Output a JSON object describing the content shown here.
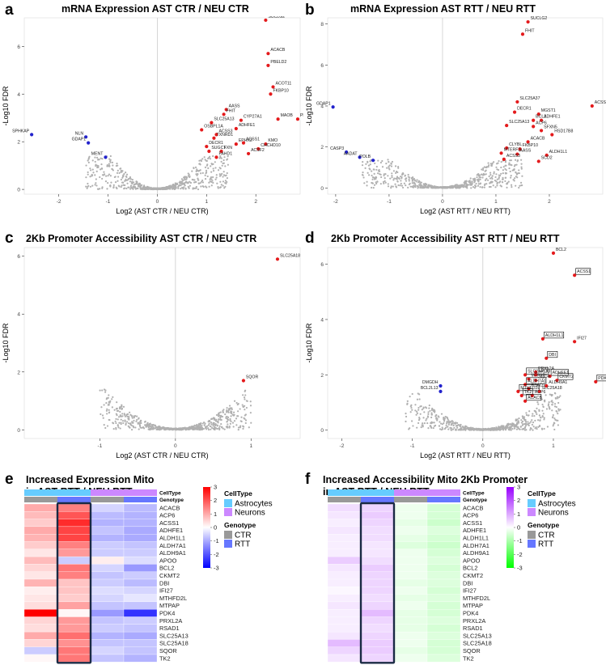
{
  "chart_data": [
    {
      "id": "a",
      "type": "scatter",
      "letter": "a",
      "title": "mRNA Expression AST CTR / NEU CTR",
      "xlabel": "Log2 (AST CTR / NEU CTR)",
      "ylabel": "-Log10 FDR",
      "xlim": [
        -2.7,
        2.9
      ],
      "ylim": [
        -0.2,
        7.2
      ],
      "xticks": [
        -2,
        -1,
        0,
        1,
        2
      ],
      "yticks": [
        0,
        2,
        4,
        6
      ],
      "points": [
        {
          "label": "SUCLG2",
          "x": 2.2,
          "y": 7.1,
          "color": "red"
        },
        {
          "label": "ACACB",
          "x": 2.25,
          "y": 5.7,
          "color": "red"
        },
        {
          "label": "PBELD2",
          "x": 2.25,
          "y": 5.2,
          "color": "red"
        },
        {
          "label": "ACOT11",
          "x": 2.35,
          "y": 4.3,
          "color": "red"
        },
        {
          "label": "FKBP10",
          "x": 2.3,
          "y": 4.0,
          "color": "red"
        },
        {
          "label": "AASS",
          "x": 1.4,
          "y": 3.35,
          "color": "red"
        },
        {
          "label": "FHIT",
          "x": 1.35,
          "y": 3.15,
          "color": "red"
        },
        {
          "label": "MAOB",
          "x": 2.45,
          "y": 2.95,
          "color": "red"
        },
        {
          "label": "PDK4",
          "x": 2.85,
          "y": 2.95,
          "color": "red"
        },
        {
          "label": "CYP27A1",
          "x": 1.7,
          "y": 2.9,
          "color": "red"
        },
        {
          "label": "SLC25A13",
          "x": 1.1,
          "y": 2.8,
          "color": "red"
        },
        {
          "label": "ADHFE1",
          "x": 1.6,
          "y": 2.55,
          "color": "red"
        },
        {
          "label": "OSBPL1A",
          "x": 0.9,
          "y": 2.5,
          "color": "red"
        },
        {
          "label": "ACSS3",
          "x": 1.2,
          "y": 2.3,
          "color": "red"
        },
        {
          "label": "TXNRD1",
          "x": 1.15,
          "y": 2.15,
          "color": "red"
        },
        {
          "label": "EPHX2",
          "x": 1.6,
          "y": 1.9,
          "color": "red"
        },
        {
          "label": "ACSS1",
          "x": 1.75,
          "y": 1.95,
          "color": "red"
        },
        {
          "label": "KMO",
          "x": 2.2,
          "y": 1.9,
          "color": "red"
        },
        {
          "label": "DECR1",
          "x": 1.0,
          "y": 1.8,
          "color": "red"
        },
        {
          "label": "CHCHD10",
          "x": 2.05,
          "y": 1.7,
          "color": "red"
        },
        {
          "label": "SUGCT",
          "x": 1.05,
          "y": 1.6,
          "color": "red"
        },
        {
          "label": "FXN",
          "x": 1.3,
          "y": 1.6,
          "color": "red"
        },
        {
          "label": "ACSF2",
          "x": 1.85,
          "y": 1.5,
          "color": "red"
        },
        {
          "label": "FAHD1",
          "x": 1.2,
          "y": 1.35,
          "color": "red"
        },
        {
          "label": "SPHKAP",
          "x": -2.55,
          "y": 2.3,
          "color": "blue"
        },
        {
          "label": "NLN",
          "x": -1.45,
          "y": 2.2,
          "color": "blue"
        },
        {
          "label": "GDAP1",
          "x": -1.4,
          "y": 1.95,
          "color": "blue"
        },
        {
          "label": "MENT",
          "x": -1.05,
          "y": 1.35,
          "color": "blue"
        }
      ]
    },
    {
      "id": "b",
      "type": "scatter",
      "letter": "b",
      "title": "mRNA Expression AST RTT / NEU RTT",
      "xlabel": "Log2 (AST RTT / NEU RTT)",
      "ylabel": "-Log10 FDR",
      "xlim": [
        -2.15,
        3.0
      ],
      "ylim": [
        -0.3,
        8.3
      ],
      "xticks": [
        -2,
        -1,
        0,
        1,
        2
      ],
      "yticks": [
        0,
        2,
        4,
        6,
        8
      ],
      "points": [
        {
          "label": "SUCLG2",
          "x": 1.6,
          "y": 8.1,
          "color": "red"
        },
        {
          "label": "FHIT",
          "x": 1.5,
          "y": 7.5,
          "color": "red"
        },
        {
          "label": "SLC25A37",
          "x": 1.4,
          "y": 4.2,
          "color": "red"
        },
        {
          "label": "ACSS1",
          "x": 2.8,
          "y": 4.0,
          "color": "red"
        },
        {
          "label": "DECR1",
          "x": 1.35,
          "y": 3.7,
          "color": "red"
        },
        {
          "label": "MGST1",
          "x": 1.8,
          "y": 3.6,
          "color": "red"
        },
        {
          "label": "BCL2",
          "x": 1.7,
          "y": 3.3,
          "color": "red"
        },
        {
          "label": "ADHFE1",
          "x": 1.85,
          "y": 3.3,
          "color": "red"
        },
        {
          "label": "ACP6",
          "x": 1.7,
          "y": 3.0,
          "color": "red"
        },
        {
          "label": "SLC25A13",
          "x": 1.2,
          "y": 3.05,
          "color": "red"
        },
        {
          "label": "SFXN5",
          "x": 1.85,
          "y": 2.8,
          "color": "red"
        },
        {
          "label": "HSD17B8",
          "x": 2.05,
          "y": 2.6,
          "color": "red"
        },
        {
          "label": "ACACB",
          "x": 1.6,
          "y": 2.25,
          "color": "red"
        },
        {
          "label": "CLYBL",
          "x": 1.2,
          "y": 1.95,
          "color": "red"
        },
        {
          "label": "FKBP10",
          "x": 1.45,
          "y": 1.9,
          "color": "red"
        },
        {
          "label": "MTERF2",
          "x": 1.1,
          "y": 1.7,
          "color": "red"
        },
        {
          "label": "AASS",
          "x": 1.4,
          "y": 1.65,
          "color": "red"
        },
        {
          "label": "ALDH1L1",
          "x": 1.95,
          "y": 1.6,
          "color": "red"
        },
        {
          "label": "ACSS3",
          "x": 1.15,
          "y": 1.4,
          "color": "red"
        },
        {
          "label": "SCD2",
          "x": 1.8,
          "y": 1.3,
          "color": "red"
        },
        {
          "label": "GDAP1",
          "x": -2.05,
          "y": 3.95,
          "color": "blue"
        },
        {
          "label": "CASP3",
          "x": -1.8,
          "y": 1.75,
          "color": "blue"
        },
        {
          "label": "AADAT",
          "x": -1.55,
          "y": 1.5,
          "color": "blue"
        },
        {
          "label": "POLB",
          "x": -1.3,
          "y": 1.35,
          "color": "blue"
        }
      ]
    },
    {
      "id": "c",
      "type": "scatter",
      "letter": "c",
      "title": "2Kb Promoter Accessibility AST CTR / NEU CTR",
      "xlabel": "Log2 (AST CTR / NEU CTR)",
      "ylabel": "-Log10 FDR",
      "xlim": [
        -2.0,
        1.65
      ],
      "ylim": [
        -0.3,
        6.3
      ],
      "xticks": [
        -1,
        0,
        1
      ],
      "yticks": [
        0,
        2,
        4,
        6
      ],
      "points": [
        {
          "label": "SLC25A18",
          "x": 1.35,
          "y": 5.9,
          "color": "red"
        },
        {
          "label": "SQOR",
          "x": 0.9,
          "y": 1.7,
          "color": "red"
        }
      ]
    },
    {
      "id": "d",
      "type": "scatter",
      "letter": "d",
      "title": "2Kb Promoter Accessibility AST RTT / NEU RTT",
      "xlabel": "Log2 (AST RTT / NEU RTT)",
      "ylabel": "-Log10 FDR",
      "xlim": [
        -2.2,
        1.7
      ],
      "ylim": [
        -0.3,
        6.6
      ],
      "xticks": [
        -2,
        -1,
        0,
        1
      ],
      "yticks": [
        0,
        2,
        4,
        6
      ],
      "points": [
        {
          "label": "BCL2",
          "x": 1.0,
          "y": 6.4,
          "color": "red"
        },
        {
          "label": "ACSS1",
          "x": 1.3,
          "y": 5.6,
          "color": "red",
          "boxed": true
        },
        {
          "label": "ALDH1L1",
          "x": 0.85,
          "y": 3.3,
          "color": "red",
          "boxed": true
        },
        {
          "label": "IFI27",
          "x": 1.3,
          "y": 3.2,
          "color": "red"
        },
        {
          "label": "DBI",
          "x": 0.9,
          "y": 2.6,
          "color": "red",
          "boxed": true
        },
        {
          "label": "PRXL2A",
          "x": 0.75,
          "y": 2.1,
          "color": "red"
        },
        {
          "label": "SLC25A13",
          "x": 0.6,
          "y": 2.0,
          "color": "red",
          "boxed": true
        },
        {
          "label": "APOO",
          "x": 0.75,
          "y": 2.0,
          "color": "red"
        },
        {
          "label": "ADHFE1",
          "x": 0.95,
          "y": 1.95,
          "color": "red",
          "boxed": true
        },
        {
          "label": "MTPAP",
          "x": 0.65,
          "y": 1.85,
          "color": "red"
        },
        {
          "label": "SQOR",
          "x": 0.75,
          "y": 1.8,
          "color": "red"
        },
        {
          "label": "CKMT2",
          "x": 1.05,
          "y": 1.8,
          "color": "red",
          "boxed": true
        },
        {
          "label": "PDK4",
          "x": 1.6,
          "y": 1.75,
          "color": "red",
          "boxed": true
        },
        {
          "label": "ALDH7A1",
          "x": 0.6,
          "y": 1.65,
          "color": "red",
          "boxed": true
        },
        {
          "label": "ALDH9A1",
          "x": 0.9,
          "y": 1.6,
          "color": "red"
        },
        {
          "label": "RSAD1",
          "x": 0.65,
          "y": 1.5,
          "color": "red"
        },
        {
          "label": "MTHFD2L",
          "x": 0.5,
          "y": 1.4,
          "color": "red",
          "boxed": true
        },
        {
          "label": "SLC25A18",
          "x": 0.8,
          "y": 1.4,
          "color": "red"
        },
        {
          "label": "TK2",
          "x": 0.55,
          "y": 1.25,
          "color": "red",
          "boxed": true
        },
        {
          "label": "ACP6",
          "x": 0.7,
          "y": 1.25,
          "color": "red"
        },
        {
          "label": "ACACB",
          "x": 0.6,
          "y": 1.05,
          "color": "red",
          "boxed": true
        },
        {
          "label": "DMGDH",
          "x": -0.6,
          "y": 1.6,
          "color": "blue"
        },
        {
          "label": "BCL2L13",
          "x": -0.6,
          "y": 1.4,
          "color": "blue"
        }
      ]
    },
    {
      "id": "e",
      "type": "heatmap",
      "letter": "e",
      "title_line1": "Increased Expression Mito",
      "title_line2": "in AST RTT / NEU RTT",
      "row_labels": [
        "ACACB",
        "ACP6",
        "ACSS1",
        "ADHFE1",
        "ALDH1L1",
        "ALDH7A1",
        "ALDH9A1",
        "APOO",
        "BCL2",
        "CKMT2",
        "DBI",
        "IFI27",
        "MTHFD2L",
        "MTPAP",
        "PDK4",
        "PRXL2A",
        "RSAD1",
        "SLC25A13",
        "SLC25A18",
        "SQOR",
        "TK2"
      ],
      "celltype": [
        "Astrocytes",
        "Astrocytes",
        "Neurons",
        "Neurons"
      ],
      "genotype": [
        "CTR",
        "RTT",
        "CTR",
        "RTT"
      ],
      "values": [
        [
          1.0,
          1.5,
          -0.5,
          -0.8
        ],
        [
          0.8,
          2.0,
          -0.8,
          -0.9
        ],
        [
          0.6,
          2.5,
          -0.9,
          -0.9
        ],
        [
          1.0,
          2.2,
          -0.7,
          -1.0
        ],
        [
          0.9,
          2.2,
          -0.9,
          -1.0
        ],
        [
          0.6,
          1.5,
          -0.6,
          -0.7
        ],
        [
          0.3,
          1.2,
          -0.6,
          -0.6
        ],
        [
          0.8,
          -0.6,
          0.2,
          -0.4
        ],
        [
          0.5,
          1.6,
          -0.5,
          -1.2
        ],
        [
          0.3,
          1.5,
          -0.7,
          -0.6
        ],
        [
          0.9,
          0.7,
          -0.6,
          -0.8
        ],
        [
          0.2,
          0.7,
          -0.4,
          -0.5
        ],
        [
          0.3,
          0.6,
          -0.5,
          -0.3
        ],
        [
          0.4,
          1.1,
          -0.7,
          -0.7
        ],
        [
          3.0,
          0.1,
          -1.2,
          -2.4
        ],
        [
          0.5,
          1.2,
          -0.7,
          -0.6
        ],
        [
          0.4,
          1.2,
          -0.6,
          -0.7
        ],
        [
          1.0,
          1.7,
          -0.9,
          -1.0
        ],
        [
          0.5,
          1.3,
          -0.7,
          -0.7
        ],
        [
          -0.6,
          1.6,
          -0.5,
          -0.7
        ],
        [
          0.1,
          1.6,
          -0.7,
          -0.9
        ]
      ],
      "colorbar": {
        "ticks": [
          3,
          2,
          1,
          0,
          -1,
          -2,
          -3
        ],
        "min": -3,
        "max": 3,
        "low": "#0000ff",
        "mid": "#ffffff",
        "high": "#ff0000"
      },
      "legend": {
        "celltype_title": "CellType",
        "celltype_items": [
          "Astrocytes",
          "Neurons"
        ],
        "genotype_title": "Genotype",
        "genotype_items": [
          "CTR",
          "RTT"
        ]
      }
    },
    {
      "id": "f",
      "type": "heatmap",
      "letter": "f",
      "title_line1": "Increased Accessibility Mito 2Kb Promoter",
      "title_line2": "in AST RTT / NEU RTT",
      "row_labels": [
        "ACACB",
        "ACP6",
        "ACSS1",
        "ADHFE1",
        "ALDH1L1",
        "ALDH7A1",
        "ALDH9A1",
        "APOO",
        "BCL2",
        "CKMT2",
        "DBI",
        "IFI27",
        "MTHFD2L",
        "MTPAP",
        "PDK4",
        "PRXL2A",
        "RSAD1",
        "SLC25A13",
        "SLC25A18",
        "SQOR",
        "TK2"
      ],
      "celltype": [
        "Astrocytes",
        "Astrocytes",
        "Neurons",
        "Neurons"
      ],
      "genotype": [
        "CTR",
        "RTT",
        "CTR",
        "RTT"
      ],
      "values": [
        [
          0.4,
          0.5,
          -0.2,
          -0.5
        ],
        [
          0.3,
          0.6,
          -0.2,
          -0.5
        ],
        [
          0.2,
          0.5,
          -0.3,
          -0.6
        ],
        [
          0.3,
          0.4,
          -0.2,
          -0.4
        ],
        [
          0.2,
          0.4,
          -0.3,
          -0.5
        ],
        [
          0.2,
          0.3,
          -0.4,
          -0.6
        ],
        [
          0.2,
          0.3,
          -0.2,
          -0.5
        ],
        [
          0.6,
          0.4,
          -0.2,
          -0.4
        ],
        [
          0.3,
          0.6,
          -0.2,
          -0.5
        ],
        [
          0.2,
          0.5,
          -0.2,
          -0.4
        ],
        [
          0.2,
          0.5,
          -0.3,
          -0.4
        ],
        [
          0.1,
          0.5,
          -0.2,
          -0.5
        ],
        [
          0.2,
          0.4,
          -0.3,
          -0.4
        ],
        [
          0.3,
          0.5,
          -0.2,
          -0.5
        ],
        [
          0.2,
          0.8,
          -0.3,
          -0.5
        ],
        [
          0.2,
          0.5,
          -0.3,
          -0.4
        ],
        [
          0.2,
          0.4,
          -0.3,
          -0.5
        ],
        [
          0.3,
          0.5,
          -0.2,
          -0.4
        ],
        [
          0.8,
          0.6,
          -0.2,
          -0.5
        ],
        [
          0.5,
          0.6,
          -0.3,
          -0.5
        ],
        [
          0.3,
          0.5,
          -0.2,
          -0.4
        ]
      ],
      "colorbar": {
        "ticks": [
          3,
          2,
          1,
          0,
          -1,
          -2,
          -3
        ],
        "min": -3,
        "max": 3,
        "low": "#00ff00",
        "mid": "#ffffff",
        "high": "#9900ff"
      },
      "legend": {
        "celltype_title": "CellType",
        "celltype_items": [
          "Astrocytes",
          "Neurons"
        ],
        "genotype_title": "Genotype",
        "genotype_items": [
          "CTR",
          "RTT"
        ]
      }
    }
  ],
  "colors": {
    "red": "#e41a1c",
    "blue": "#2222cc",
    "grey": "#b0b0b0",
    "astrocytes": "#66ccff",
    "neurons": "#cc88ff",
    "ctr": "#999999",
    "rtt": "#6677ff",
    "box": "#1a2a44"
  }
}
